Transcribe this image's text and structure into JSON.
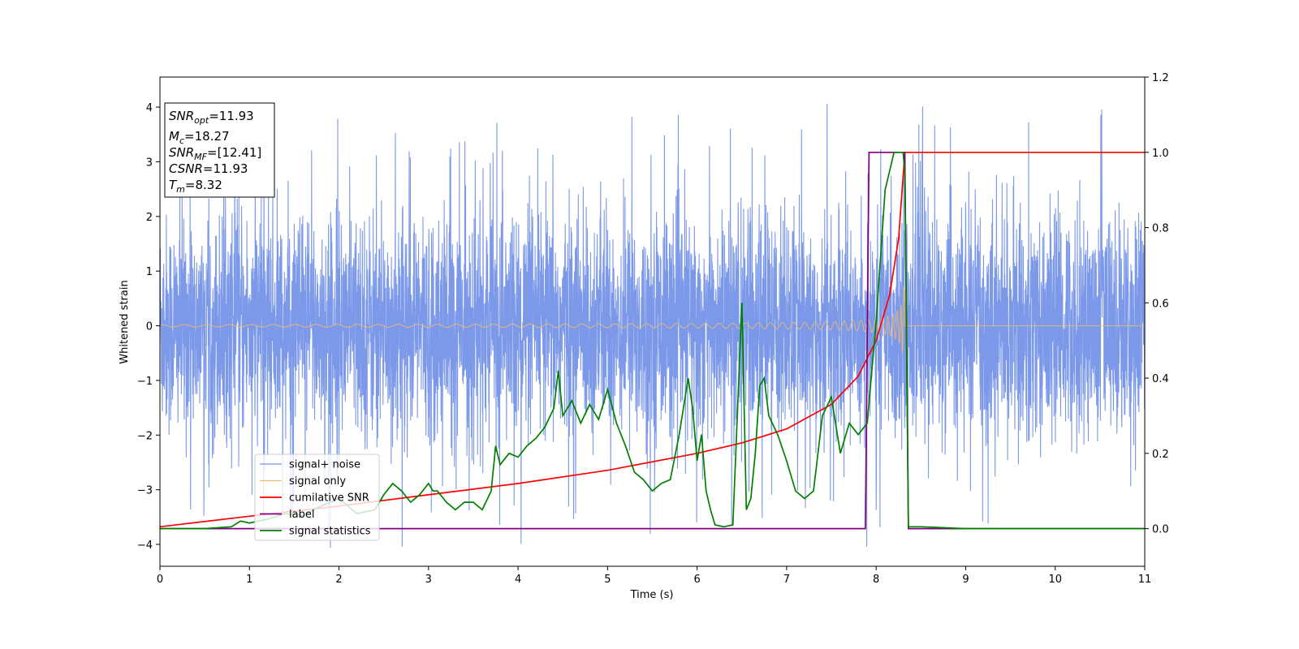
{
  "chart_data": {
    "type": "line",
    "title": "",
    "xlabel": "Time (s)",
    "ylabel": "Whitened strain",
    "xlim": [
      0,
      11
    ],
    "ylim_left": [
      -4.4,
      4.55
    ],
    "ylim_right": [
      -0.1,
      1.2
    ],
    "x_ticks": [
      "0",
      "1",
      "2",
      "3",
      "4",
      "5",
      "6",
      "7",
      "8",
      "9",
      "10",
      "11"
    ],
    "y_ticks_left": [
      "4",
      "3",
      "2",
      "1",
      "0",
      "−1",
      "−2",
      "−3",
      "−4"
    ],
    "y_ticks_right": [
      "1.2",
      "1.0",
      "0.8",
      "0.6",
      "0.4",
      "0.2",
      "0.0"
    ],
    "grid": false,
    "legend_position": "lower-left",
    "info_box": {
      "snr_opt": {
        "main": "SNR",
        "sub": "opt",
        "value": "=11.93"
      },
      "mc": {
        "main": "M",
        "sub": "c",
        "value": "=18.27"
      },
      "snr_mf": {
        "main": "SNR",
        "sub": "MF",
        "value": "=[12.41]"
      },
      "csnr": {
        "main": "CSNR",
        "value": "=11.93"
      },
      "tm": {
        "main": "T",
        "sub": "m",
        "value": "=8.32"
      }
    },
    "series": [
      {
        "name": "signal+ noise",
        "color": "#7593e8",
        "axis": "left",
        "description": "dense noisy strain, approx. uniform amplitude between -2.5 and 2.5 with spikes up to about 4.1",
        "envelope": [
          -2.5,
          2.5
        ],
        "x_range": [
          0,
          11
        ]
      },
      {
        "name": "signal only",
        "color": "#f4b96b",
        "axis": "left",
        "description": "chirp with small amplitude growing to about 1.4 near merger at t=8.32, then zero",
        "merger_time": 8.32
      },
      {
        "name": "cumilative SNR",
        "color": "#ff0000",
        "axis": "right",
        "x": [
          0,
          1,
          2,
          3,
          4,
          5,
          6,
          6.5,
          7,
          7.5,
          7.8,
          8.0,
          8.15,
          8.25,
          8.32,
          8.4,
          11
        ],
        "y": [
          0.005,
          0.033,
          0.06,
          0.09,
          0.12,
          0.155,
          0.2,
          0.228,
          0.265,
          0.33,
          0.405,
          0.5,
          0.62,
          0.77,
          1.0,
          1.0,
          1.0
        ]
      },
      {
        "name": "label",
        "color": "#800080",
        "axis": "right",
        "x": [
          0,
          7.88,
          7.92,
          8.32,
          8.36,
          11
        ],
        "y": [
          0,
          0,
          1,
          1,
          0,
          0
        ]
      },
      {
        "name": "signal statistics",
        "color": "#008000",
        "axis": "right",
        "x": [
          0,
          0.5,
          0.8,
          0.9,
          1.0,
          1.1,
          1.2,
          1.4,
          1.6,
          1.8,
          2.0,
          2.2,
          2.4,
          2.5,
          2.6,
          2.7,
          2.8,
          2.9,
          3.0,
          3.05,
          3.1,
          3.2,
          3.3,
          3.4,
          3.5,
          3.6,
          3.7,
          3.75,
          3.8,
          3.9,
          4.0,
          4.1,
          4.2,
          4.3,
          4.4,
          4.45,
          4.5,
          4.6,
          4.7,
          4.8,
          4.9,
          5.0,
          5.1,
          5.2,
          5.3,
          5.4,
          5.5,
          5.6,
          5.7,
          5.8,
          5.9,
          5.95,
          6.0,
          6.05,
          6.1,
          6.15,
          6.2,
          6.3,
          6.4,
          6.5,
          6.55,
          6.6,
          6.65,
          6.7,
          6.75,
          6.8,
          6.9,
          7.0,
          7.1,
          7.2,
          7.3,
          7.4,
          7.5,
          7.6,
          7.7,
          7.8,
          7.9,
          8.0,
          8.1,
          8.2,
          8.3,
          8.32,
          8.36,
          8.5,
          9,
          11
        ],
        "y": [
          0,
          0,
          0.005,
          0.02,
          0.015,
          0.02,
          0.025,
          0.04,
          0.035,
          0.06,
          0.08,
          0.04,
          0.05,
          0.09,
          0.12,
          0.1,
          0.07,
          0.09,
          0.12,
          0.1,
          0.1,
          0.07,
          0.05,
          0.07,
          0.07,
          0.05,
          0.1,
          0.22,
          0.17,
          0.2,
          0.19,
          0.22,
          0.24,
          0.27,
          0.32,
          0.42,
          0.3,
          0.34,
          0.28,
          0.33,
          0.29,
          0.37,
          0.28,
          0.22,
          0.15,
          0.13,
          0.1,
          0.12,
          0.13,
          0.25,
          0.4,
          0.32,
          0.18,
          0.25,
          0.1,
          0.05,
          0.01,
          0.005,
          0.01,
          0.6,
          0.05,
          0.08,
          0.2,
          0.38,
          0.4,
          0.3,
          0.25,
          0.18,
          0.1,
          0.08,
          0.1,
          0.3,
          0.35,
          0.2,
          0.28,
          0.25,
          0.28,
          0.55,
          0.9,
          1.0,
          1.0,
          0.95,
          0.005,
          0.005,
          0,
          0
        ]
      }
    ]
  }
}
